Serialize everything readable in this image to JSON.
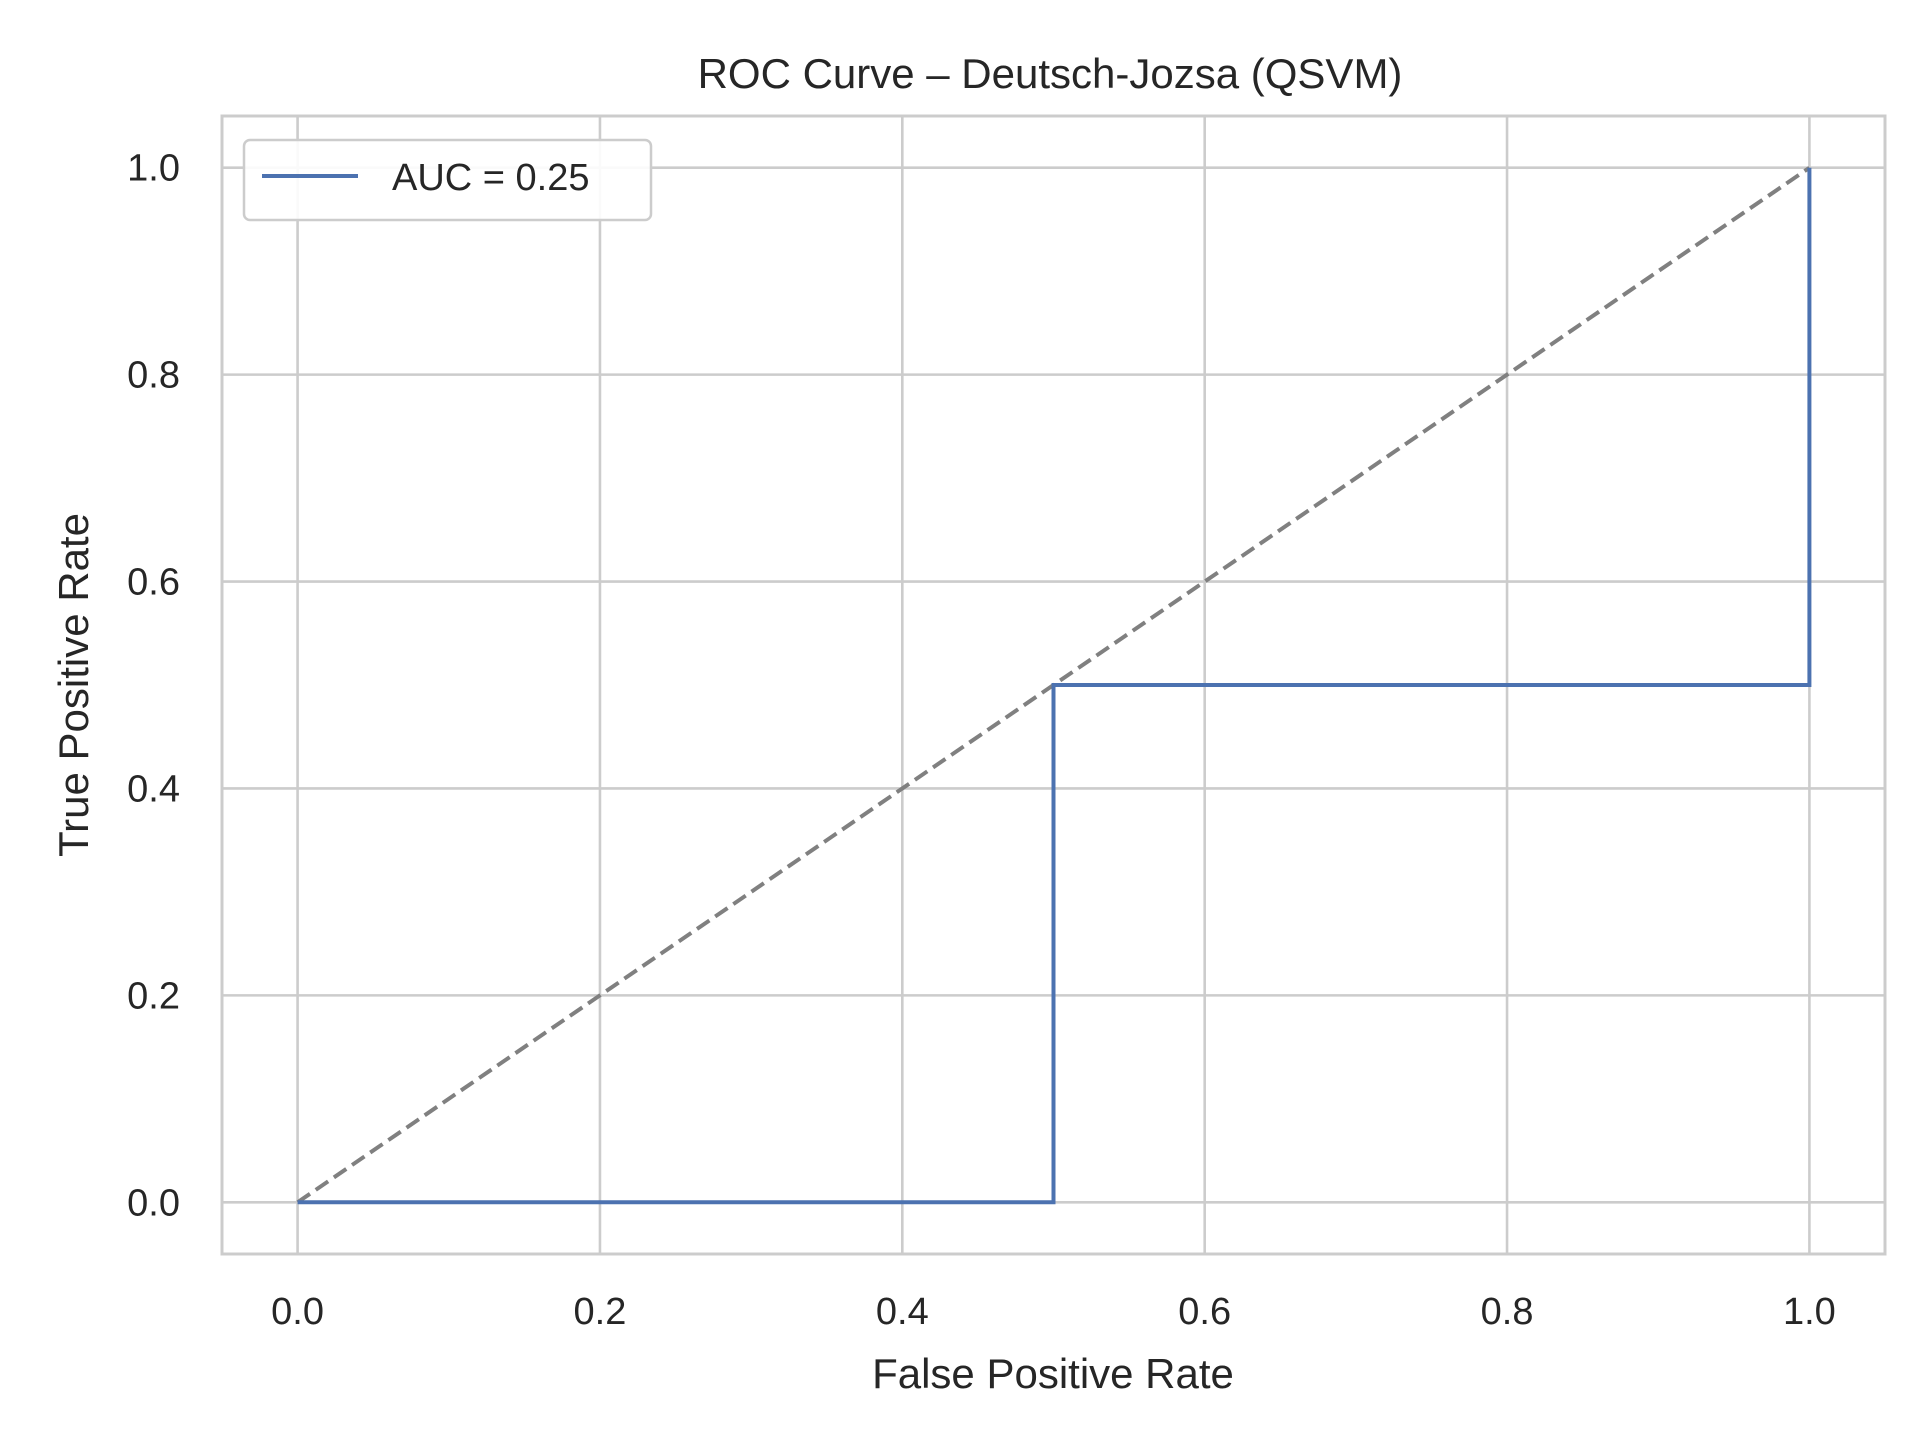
{
  "chart_data": {
    "type": "line",
    "title": "ROC Curve – Deutsch-Jozsa (QSVM)",
    "xlabel": "False Positive Rate",
    "ylabel": "True Positive Rate",
    "xlim": [
      -0.05,
      1.05
    ],
    "ylim": [
      -0.05,
      1.05
    ],
    "xticks": [
      0.0,
      0.2,
      0.4,
      0.6,
      0.8,
      1.0
    ],
    "yticks": [
      0.0,
      0.2,
      0.4,
      0.6,
      0.8,
      1.0
    ],
    "xtick_labels": [
      "0.0",
      "0.2",
      "0.4",
      "0.6",
      "0.8",
      "1.0"
    ],
    "ytick_labels": [
      "0.0",
      "0.2",
      "0.4",
      "0.6",
      "0.8",
      "1.0"
    ],
    "grid": true,
    "legend_position": "upper-left",
    "series": [
      {
        "name": "AUC = 0.25",
        "x": [
          0.0,
          0.5,
          0.5,
          1.0,
          1.0
        ],
        "y": [
          0.0,
          0.0,
          0.5,
          0.5,
          1.0
        ],
        "color": "#4c72b0",
        "style": "solid"
      },
      {
        "x": [
          0.0,
          1.0
        ],
        "y": [
          0.0,
          1.0
        ],
        "color": "#808080",
        "style": "dashed"
      }
    ]
  }
}
